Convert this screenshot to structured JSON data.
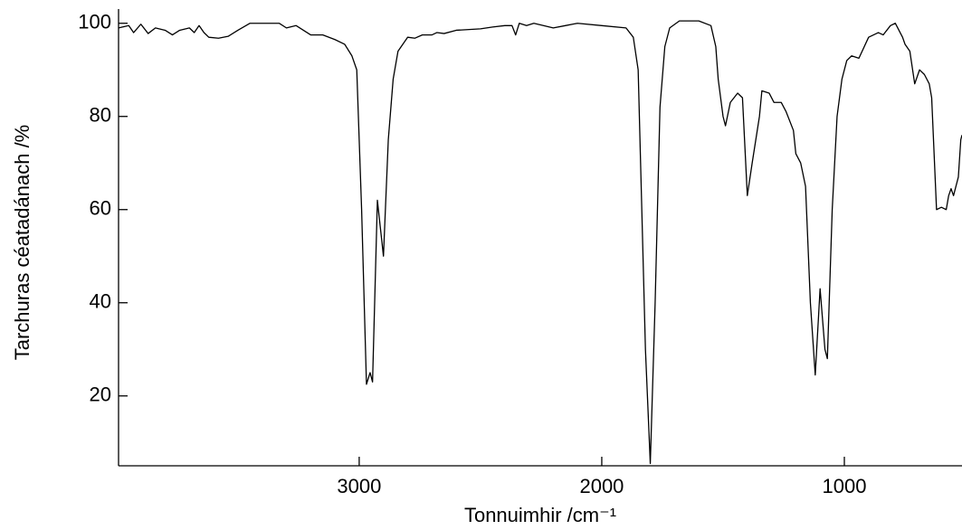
{
  "chart_data": {
    "type": "line",
    "xlabel": "Tonnuimhir /cm⁻¹",
    "ylabel": "Tarchuras céatadánach /%",
    "x": [
      3992,
      3950,
      3930,
      3900,
      3870,
      3840,
      3800,
      3770,
      3740,
      3700,
      3680,
      3660,
      3640,
      3620,
      3580,
      3540,
      3500,
      3450,
      3400,
      3330,
      3300,
      3260,
      3200,
      3150,
      3100,
      3060,
      3030,
      3010,
      2990,
      2970,
      2955,
      2945,
      2925,
      2900,
      2880,
      2860,
      2840,
      2800,
      2770,
      2740,
      2700,
      2680,
      2650,
      2600,
      2500,
      2450,
      2400,
      2370,
      2355,
      2340,
      2310,
      2280,
      2200,
      2150,
      2100,
      2000,
      1900,
      1870,
      1850,
      1840,
      1820,
      1800,
      1780,
      1760,
      1740,
      1720,
      1680,
      1600,
      1550,
      1530,
      1520,
      1500,
      1490,
      1470,
      1440,
      1420,
      1400,
      1380,
      1350,
      1340,
      1310,
      1290,
      1260,
      1240,
      1210,
      1200,
      1180,
      1160,
      1140,
      1120,
      1100,
      1080,
      1070,
      1050,
      1030,
      1010,
      990,
      970,
      940,
      900,
      860,
      840,
      810,
      790,
      760,
      750,
      730,
      710,
      690,
      670,
      650,
      640,
      620,
      600,
      580,
      570,
      560,
      550,
      530,
      520,
      515
    ],
    "y": [
      99,
      99.5,
      98,
      99.8,
      97.8,
      99,
      98.5,
      97.5,
      98.5,
      99,
      98,
      99.5,
      98,
      97,
      96.8,
      97.2,
      98.5,
      100,
      100,
      100,
      99,
      99.5,
      97.5,
      97.5,
      96.5,
      95.5,
      93,
      90,
      60,
      22.5,
      25,
      23,
      62,
      50,
      75,
      88,
      94,
      97,
      96.8,
      97.5,
      97.5,
      98,
      97.8,
      98.5,
      98.8,
      99.2,
      99.5,
      99.5,
      97.5,
      100,
      99.5,
      100,
      99,
      99.5,
      100,
      99.5,
      99,
      97,
      90,
      70,
      30,
      5.5,
      40,
      82,
      95,
      99,
      100.5,
      100.5,
      99.5,
      95,
      88,
      80,
      78,
      83,
      85,
      84,
      63,
      70,
      80,
      85.5,
      85,
      83,
      83,
      81,
      77,
      72,
      70,
      65,
      40,
      24.5,
      43,
      30,
      28,
      60,
      80,
      88,
      92,
      93,
      92.5,
      97,
      98,
      97.5,
      99.5,
      100,
      97,
      95.5,
      94,
      87,
      90,
      89,
      87,
      84,
      60,
      60.5,
      60,
      63,
      64.5,
      63,
      67,
      75,
      76
    ],
    "color": "#000000",
    "xlim": [
      3992,
      515
    ],
    "ylim": [
      5,
      101.5
    ],
    "xticks": [
      3000,
      2000,
      1000
    ],
    "yticks": [
      20,
      40,
      60,
      80,
      100
    ]
  }
}
